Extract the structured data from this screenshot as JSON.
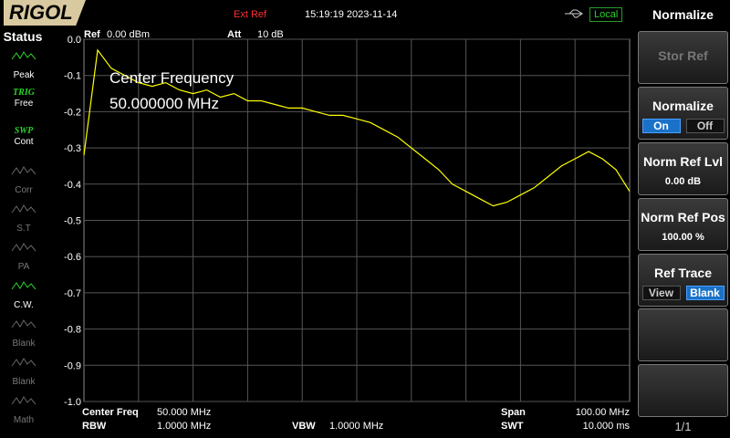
{
  "header": {
    "logo": "RIGOL",
    "ref_source": "Ext Ref",
    "datetime": "15:19:19 2023-11-14",
    "mode": "Local"
  },
  "status": {
    "title": "Status",
    "items": [
      {
        "label": "Peak",
        "active": true
      },
      {
        "top": "TRIG",
        "label": "Free",
        "active": true
      },
      {
        "top": "SWP",
        "label": "Cont",
        "active": true
      },
      {
        "label": "Corr",
        "active": false
      },
      {
        "label": "S.T",
        "active": false
      },
      {
        "label": "PA",
        "active": false
      },
      {
        "label": "C.W.",
        "active": true
      },
      {
        "label": "Blank",
        "active": false
      },
      {
        "label": "Blank",
        "active": false
      },
      {
        "label": "Math",
        "active": false
      }
    ]
  },
  "chart_data": {
    "type": "line",
    "ref_label": "Ref",
    "ref_value": "0.00 dBm",
    "att_label": "Att",
    "att_value": "10 dB",
    "annotation": [
      "Center Frequency",
      "50.000000 MHz"
    ],
    "x": [
      0,
      2.5,
      5,
      7.5,
      10,
      12.5,
      15,
      17.5,
      20,
      22.5,
      25,
      27.5,
      30,
      32.5,
      35,
      37.5,
      40,
      42.5,
      45,
      47.5,
      50,
      52.5,
      55,
      57.5,
      60,
      62.5,
      65,
      67.5,
      70,
      72.5,
      75,
      77.5,
      80,
      82.5,
      85,
      87.5,
      90,
      92.5,
      95,
      97.5,
      100
    ],
    "series": [
      {
        "color": "#ffff00",
        "values": [
          -0.32,
          -0.03,
          -0.08,
          -0.1,
          -0.12,
          -0.13,
          -0.12,
          -0.14,
          -0.15,
          -0.14,
          -0.16,
          -0.15,
          -0.17,
          -0.17,
          -0.18,
          -0.19,
          -0.19,
          -0.2,
          -0.21,
          -0.21,
          -0.22,
          -0.23,
          -0.25,
          -0.27,
          -0.3,
          -0.33,
          -0.36,
          -0.4,
          -0.42,
          -0.44,
          -0.46,
          -0.45,
          -0.43,
          -0.41,
          -0.38,
          -0.35,
          -0.33,
          -0.31,
          -0.33,
          -0.36,
          -0.42
        ]
      }
    ],
    "xlim": [
      0,
      100
    ],
    "ylim": [
      -1,
      0
    ],
    "yticks": [
      {
        "value": 0,
        "label": "0.0"
      },
      -0.1,
      -0.2,
      -0.3,
      -0.4,
      -0.5,
      -0.6,
      -0.7,
      -0.8,
      -0.9,
      {
        "value": -1,
        "label": "-1.0"
      }
    ],
    "grid": true
  },
  "footer": {
    "center_freq_label": "Center Freq",
    "center_freq": "50.000 MHz",
    "span_label": "Span",
    "span": "100.00 MHz",
    "rbw_label": "RBW",
    "rbw": "1.0000 MHz",
    "vbw_label": "VBW",
    "vbw": "1.0000 MHz",
    "swt_label": "SWT",
    "swt": "10.000 ms"
  },
  "menu": {
    "title": "Normalize",
    "page": "1/1",
    "items": [
      {
        "label": "Stor Ref",
        "enabled": false
      },
      {
        "label": "Normalize",
        "options": [
          "On",
          "Off"
        ],
        "selected": 0
      },
      {
        "label": "Norm Ref Lvl",
        "value": "0.00 dB"
      },
      {
        "label": "Norm Ref Pos",
        "value": "100.00 %"
      },
      {
        "label": "Ref Trace",
        "options": [
          "View",
          "Blank"
        ],
        "selected": 1
      }
    ]
  }
}
